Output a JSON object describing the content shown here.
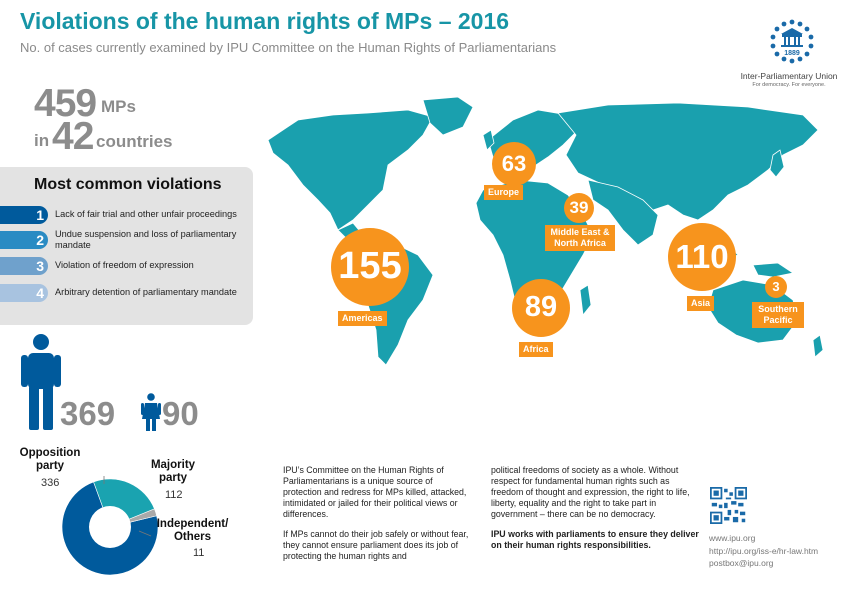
{
  "header": {
    "title": "Violations of the human rights of MPs – 2016",
    "subtitle": "No. of cases currently examined by IPU Committee on the Human Rights of Parliamentarians"
  },
  "logo": {
    "year": "1889",
    "name": "Inter-Parliamentary Union",
    "tagline": "For democracy. For everyone."
  },
  "stats": {
    "mps_count": "459",
    "mps_unit": "MPs",
    "in_word": "in",
    "countries_count": "42",
    "countries_unit": "countries"
  },
  "violations": {
    "title": "Most common violations",
    "items": [
      {
        "rank": "1",
        "label": "Lack of fair trial and other unfair proceedings",
        "color": "#005a9c"
      },
      {
        "rank": "2",
        "label": "Undue suspension and loss of parliamentary mandate",
        "color": "#2a8bc3"
      },
      {
        "rank": "3",
        "label": "Violation of freedom of expression",
        "color": "#6fa1cc"
      },
      {
        "rank": "4",
        "label": "Arbitrary detention of parliamentary mandate",
        "color": "#a8c3e0"
      }
    ]
  },
  "gender": {
    "men": "369",
    "women": "90",
    "men_icon": "male-person-icon",
    "women_icon": "female-person-icon",
    "color": "#005a9c"
  },
  "party": {
    "opposition_label": "Opposition party",
    "opposition_value": "336",
    "majority_label": "Majority party",
    "majority_value": "112",
    "independent_label": "Independent/ Others",
    "independent_value": "11",
    "chart_data": {
      "type": "pie",
      "categories": [
        "Opposition party",
        "Majority party",
        "Independent/ Others"
      ],
      "values": [
        336,
        112,
        11
      ],
      "colors": [
        "#005a9c",
        "#1aa3b0",
        "#a9a9a9"
      ]
    }
  },
  "regions": [
    {
      "value": "155",
      "label": "Americas"
    },
    {
      "value": "63",
      "label": "Europe"
    },
    {
      "value": "39",
      "label": "Middle East & North Africa"
    },
    {
      "value": "89",
      "label": "Africa"
    },
    {
      "value": "110",
      "label": "Asia"
    },
    {
      "value": "3",
      "label": "Southern Pacific"
    }
  ],
  "colors": {
    "accent": "#1795a6",
    "map": "#1aa0ae",
    "bubble": "#f7941d",
    "dark_blue": "#005a9c"
  },
  "body": {
    "col1_p1": "IPU’s Committee on the Human Rights of Parliamentarians is a unique source of protection and redress for MPs killed, attacked, intimidated or jailed for their political views or differences.",
    "col1_p2": "If MPs cannot do their job safely or without fear, they cannot ensure parliament does its job of protecting the human rights and",
    "col2_p1": "political freedoms of society as a whole. Without respect for fundamental human rights such as freedom of thought and expression, the right to life, liberty, equality and the right to take part in government – there can be no democracy.",
    "col2_p2": "IPU works with parliaments to ensure they deliver on their human rights responsibilities."
  },
  "links": {
    "site": "www.ipu.org",
    "page": "http://ipu.org/iss-e/hr-law.htm",
    "email": "postbox@ipu.org"
  }
}
